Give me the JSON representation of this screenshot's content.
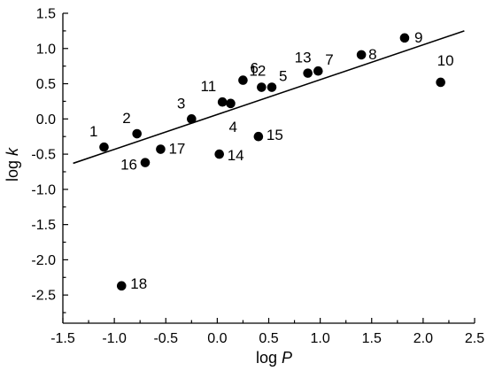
{
  "chart_data": {
    "type": "scatter",
    "title": "",
    "xlabel_prefix": "log ",
    "xlabel_var": "P",
    "ylabel_prefix": "log ",
    "ylabel_var": "k",
    "xlim": [
      -1.5,
      2.5
    ],
    "ylim": [
      -2.9,
      1.5
    ],
    "xticks": [
      -1.5,
      -1.0,
      -0.5,
      0.0,
      0.5,
      1.0,
      1.5,
      2.0,
      2.5
    ],
    "xtick_labels": [
      "-1.5",
      "-1.0",
      "-0.5",
      "0.0",
      "0.5",
      "1.0",
      "1.5",
      "2.0",
      "2.5"
    ],
    "yticks": [
      -2.5,
      -2.0,
      -1.5,
      -1.0,
      -0.5,
      0.0,
      0.5,
      1.0,
      1.5
    ],
    "ytick_labels": [
      "-2.5",
      "-2.0",
      "-1.5",
      "-1.0",
      "-0.5",
      "0.0",
      "0.5",
      "1.0",
      "1.5"
    ],
    "grid": false,
    "legend": "none",
    "points": [
      {
        "label": "1",
        "x": -1.1,
        "y": -0.4
      },
      {
        "label": "2",
        "x": -0.78,
        "y": -0.21
      },
      {
        "label": "3",
        "x": -0.25,
        "y": 0.0
      },
      {
        "label": "4",
        "x": 0.13,
        "y": 0.22
      },
      {
        "label": "5",
        "x": 0.53,
        "y": 0.45
      },
      {
        "label": "6",
        "x": 0.25,
        "y": 0.55
      },
      {
        "label": "7",
        "x": 0.98,
        "y": 0.68
      },
      {
        "label": "8",
        "x": 1.4,
        "y": 0.91
      },
      {
        "label": "9",
        "x": 1.82,
        "y": 1.15
      },
      {
        "label": "10",
        "x": 2.17,
        "y": 0.52
      },
      {
        "label": "11",
        "x": 0.05,
        "y": 0.24
      },
      {
        "label": "12",
        "x": 0.43,
        "y": 0.45
      },
      {
        "label": "13",
        "x": 0.88,
        "y": 0.65
      },
      {
        "label": "14",
        "x": 0.02,
        "y": -0.5
      },
      {
        "label": "15",
        "x": 0.4,
        "y": -0.25
      },
      {
        "label": "16",
        "x": -0.7,
        "y": -0.62
      },
      {
        "label": "17",
        "x": -0.55,
        "y": -0.43
      },
      {
        "label": "18",
        "x": -0.93,
        "y": -2.37
      }
    ],
    "fit_line": {
      "x": [
        -1.4,
        2.4
      ],
      "y": [
        -0.63,
        1.25
      ]
    }
  }
}
